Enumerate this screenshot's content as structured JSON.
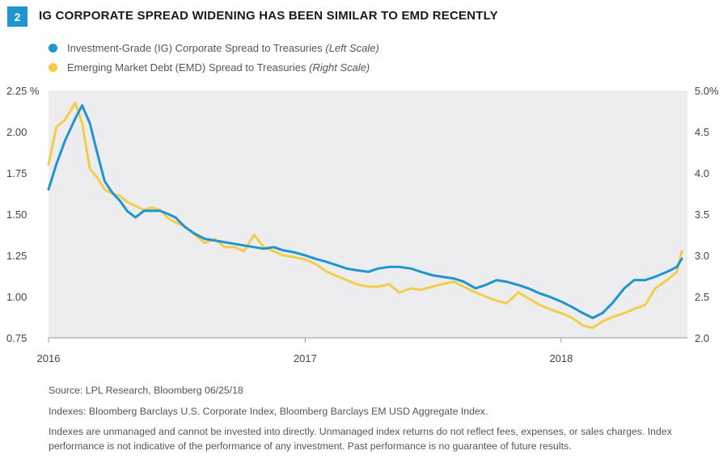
{
  "figure_number": "2",
  "title": "IG CORPORATE SPREAD WIDENING HAS BEEN SIMILAR TO EMD RECENTLY",
  "legend": [
    {
      "label": "Investment-Grade (IG) Corporate Spread to Treasuries",
      "scale": "(Left Scale)",
      "color": "#1e95cf"
    },
    {
      "label": "Emerging Market Debt (EMD) Spread to Treasuries",
      "scale": "(Right Scale)",
      "color": "#f2cd4a"
    }
  ],
  "footnotes": {
    "source": "Source: LPL Research, Bloomberg   06/25/18",
    "indexes": "Indexes: Bloomberg Barclays U.S. Corporate Index, Bloomberg Barclays EM USD Aggregate Index.",
    "disclaimer_1": "Indexes are unmanaged and cannot be invested into directly. Unmanaged index returns do not reflect fees, expenses, or sales charges. Index",
    "disclaimer_2": "performance is not indicative of the performance of any investment. Past performance is no guarantee of future results."
  },
  "chart_data": {
    "type": "line",
    "plot_background": "#ededef",
    "grid": false,
    "x_ticks": [
      "2016",
      "2017",
      "2018"
    ],
    "x_range": [
      "2016-01",
      "2018-06"
    ],
    "left_axis": {
      "ticks": [
        "0.75",
        "1.00",
        "1.25",
        "1.50",
        "1.75",
        "2.00",
        "2.25 %"
      ],
      "range": [
        0.75,
        2.25
      ]
    },
    "right_axis": {
      "ticks": [
        "2.0",
        "2.5",
        "3.0",
        "3.5",
        "4.0",
        "4.5",
        "5.0%"
      ],
      "range": [
        2.0,
        5.0
      ]
    },
    "series": [
      {
        "name": "Investment-Grade (IG) Corporate Spread to Treasuries",
        "axis": "left",
        "color": "#1e95cf",
        "x": [
          "2016-01-01",
          "2016-01-12",
          "2016-01-25",
          "2016-02-08",
          "2016-02-18",
          "2016-02-29",
          "2016-03-10",
          "2016-03-21",
          "2016-04-01",
          "2016-04-12",
          "2016-04-22",
          "2016-05-04",
          "2016-05-16",
          "2016-05-27",
          "2016-06-08",
          "2016-06-20",
          "2016-06-30",
          "2016-07-14",
          "2016-07-28",
          "2016-08-11",
          "2016-08-25",
          "2016-09-08",
          "2016-09-22",
          "2016-10-06",
          "2016-10-20",
          "2016-11-03",
          "2016-11-17",
          "2016-12-01",
          "2016-12-15",
          "2017-01-01",
          "2017-01-15",
          "2017-02-01",
          "2017-02-15",
          "2017-03-01",
          "2017-03-15",
          "2017-04-01",
          "2017-04-15",
          "2017-05-01",
          "2017-05-15",
          "2017-06-01",
          "2017-06-15",
          "2017-07-01",
          "2017-07-15",
          "2017-08-01",
          "2017-08-15",
          "2017-09-01",
          "2017-09-15",
          "2017-10-01",
          "2017-10-15",
          "2017-11-01",
          "2017-11-15",
          "2017-12-01",
          "2017-12-15",
          "2018-01-01",
          "2018-01-15",
          "2018-02-01",
          "2018-02-15",
          "2018-03-01",
          "2018-03-15",
          "2018-04-01",
          "2018-04-15",
          "2018-05-01",
          "2018-05-15",
          "2018-06-01",
          "2018-06-15",
          "2018-06-22"
        ],
        "values": [
          1.65,
          1.8,
          1.95,
          2.08,
          2.16,
          2.05,
          1.88,
          1.7,
          1.63,
          1.58,
          1.52,
          1.48,
          1.52,
          1.52,
          1.52,
          1.5,
          1.48,
          1.42,
          1.38,
          1.35,
          1.34,
          1.33,
          1.32,
          1.31,
          1.3,
          1.29,
          1.3,
          1.28,
          1.27,
          1.25,
          1.23,
          1.21,
          1.19,
          1.17,
          1.16,
          1.15,
          1.17,
          1.18,
          1.18,
          1.17,
          1.15,
          1.13,
          1.12,
          1.11,
          1.09,
          1.05,
          1.07,
          1.1,
          1.09,
          1.07,
          1.05,
          1.02,
          1.0,
          0.97,
          0.94,
          0.9,
          0.87,
          0.9,
          0.96,
          1.05,
          1.1,
          1.1,
          1.12,
          1.15,
          1.18,
          1.23
        ]
      },
      {
        "name": "Emerging Market Debt (EMD) Spread to Treasuries",
        "axis": "right",
        "color": "#f2cd4a",
        "x": [
          "2016-01-01",
          "2016-01-12",
          "2016-01-25",
          "2016-02-08",
          "2016-02-18",
          "2016-02-29",
          "2016-03-10",
          "2016-03-21",
          "2016-04-01",
          "2016-04-12",
          "2016-04-22",
          "2016-05-04",
          "2016-05-16",
          "2016-05-27",
          "2016-06-08",
          "2016-06-20",
          "2016-06-30",
          "2016-07-14",
          "2016-07-28",
          "2016-08-11",
          "2016-08-25",
          "2016-09-08",
          "2016-09-22",
          "2016-10-06",
          "2016-10-20",
          "2016-11-03",
          "2016-11-17",
          "2016-12-01",
          "2016-12-15",
          "2017-01-01",
          "2017-01-15",
          "2017-02-01",
          "2017-02-15",
          "2017-03-01",
          "2017-03-15",
          "2017-04-01",
          "2017-04-15",
          "2017-05-01",
          "2017-05-15",
          "2017-06-01",
          "2017-06-15",
          "2017-07-01",
          "2017-07-15",
          "2017-08-01",
          "2017-08-15",
          "2017-09-01",
          "2017-09-15",
          "2017-10-01",
          "2017-10-15",
          "2017-11-01",
          "2017-11-15",
          "2017-12-01",
          "2017-12-15",
          "2018-01-01",
          "2018-01-15",
          "2018-02-01",
          "2018-02-15",
          "2018-03-01",
          "2018-03-15",
          "2018-04-01",
          "2018-04-15",
          "2018-05-01",
          "2018-05-15",
          "2018-06-01",
          "2018-06-15",
          "2018-06-22"
        ],
        "values": [
          4.1,
          4.55,
          4.65,
          4.85,
          4.6,
          4.05,
          3.95,
          3.8,
          3.75,
          3.72,
          3.65,
          3.6,
          3.55,
          3.58,
          3.55,
          3.45,
          3.4,
          3.35,
          3.25,
          3.15,
          3.2,
          3.1,
          3.1,
          3.05,
          3.25,
          3.1,
          3.05,
          3.0,
          2.98,
          2.95,
          2.9,
          2.8,
          2.75,
          2.7,
          2.65,
          2.62,
          2.62,
          2.65,
          2.55,
          2.6,
          2.58,
          2.62,
          2.65,
          2.68,
          2.62,
          2.55,
          2.5,
          2.45,
          2.42,
          2.55,
          2.48,
          2.4,
          2.35,
          2.3,
          2.25,
          2.15,
          2.12,
          2.2,
          2.25,
          2.3,
          2.35,
          2.4,
          2.6,
          2.7,
          2.8,
          3.05
        ]
      }
    ]
  }
}
